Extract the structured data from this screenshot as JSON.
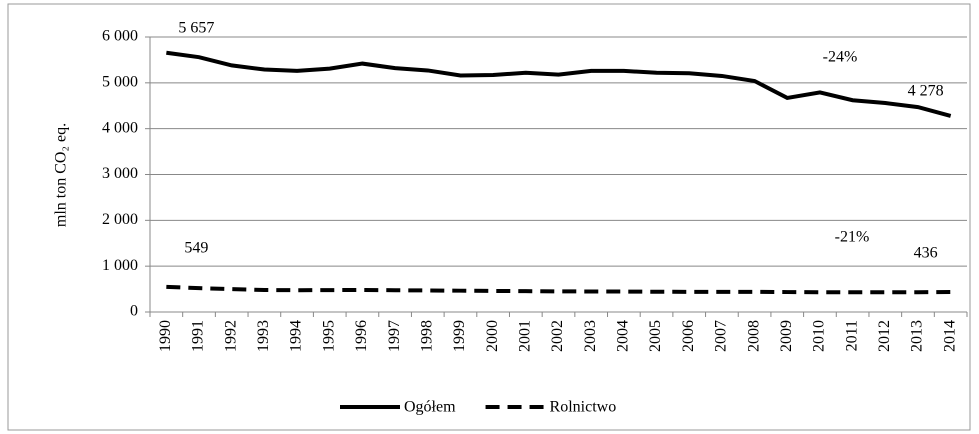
{
  "chart_data": {
    "type": "line",
    "y_label": "mln ton CO₂ eq.",
    "categories": [
      "1990",
      "1991",
      "1992",
      "1993",
      "1994",
      "1995",
      "1996",
      "1997",
      "1998",
      "1999",
      "2000",
      "2001",
      "2002",
      "2003",
      "2004",
      "2005",
      "2006",
      "2007",
      "2008",
      "2009",
      "2010",
      "2011",
      "2012",
      "2013",
      "2014"
    ],
    "series": [
      {
        "name": "Ogółem",
        "color": "#000000",
        "dash": false,
        "values": [
          5657,
          5560,
          5380,
          5290,
          5260,
          5310,
          5420,
          5320,
          5270,
          5160,
          5170,
          5220,
          5180,
          5260,
          5260,
          5220,
          5210,
          5150,
          5040,
          4670,
          4790,
          4620,
          4560,
          4470,
          4278
        ],
        "value_labels": [
          "5 657",
          null,
          null,
          null,
          null,
          null,
          null,
          null,
          null,
          null,
          null,
          null,
          null,
          null,
          null,
          null,
          null,
          null,
          null,
          null,
          null,
          null,
          null,
          null,
          "4 278"
        ]
      },
      {
        "name": "Rolnictwo",
        "color": "#000000",
        "dash": true,
        "values": [
          549,
          520,
          500,
          480,
          475,
          478,
          480,
          475,
          470,
          465,
          460,
          455,
          450,
          448,
          446,
          442,
          440,
          440,
          440,
          435,
          432,
          430,
          430,
          432,
          436
        ],
        "value_labels": [
          "549",
          null,
          null,
          null,
          null,
          null,
          null,
          null,
          null,
          null,
          null,
          null,
          null,
          null,
          null,
          null,
          null,
          null,
          null,
          null,
          null,
          null,
          null,
          null,
          "436"
        ]
      }
    ],
    "annotations": [
      "-24%",
      "-21%"
    ],
    "ylim": [
      0,
      6000
    ],
    "yticks": [
      0,
      {
        "value": 1000,
        "label": "1 000"
      },
      {
        "value": 2000,
        "label": "2 000"
      },
      {
        "value": 3000,
        "label": "3 000"
      },
      {
        "value": 4000,
        "label": "4 000"
      },
      {
        "value": 5000,
        "label": "5 000"
      },
      {
        "value": 6000,
        "label": "6 000"
      }
    ],
    "grid": true,
    "legend": "bottom"
  }
}
